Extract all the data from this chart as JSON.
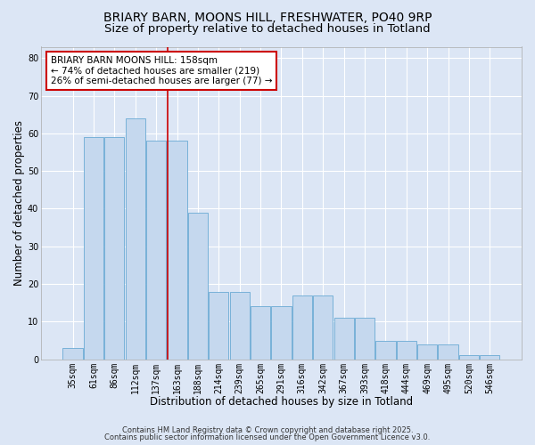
{
  "title1": "BRIARY BARN, MOONS HILL, FRESHWATER, PO40 9RP",
  "title2": "Size of property relative to detached houses in Totland",
  "xlabel": "Distribution of detached houses by size in Totland",
  "ylabel": "Number of detached properties",
  "categories": [
    "35sqm",
    "61sqm",
    "86sqm",
    "112sqm",
    "137sqm",
    "163sqm",
    "188sqm",
    "214sqm",
    "239sqm",
    "265sqm",
    "291sqm",
    "316sqm",
    "342sqm",
    "367sqm",
    "393sqm",
    "418sqm",
    "444sqm",
    "469sqm",
    "495sqm",
    "520sqm",
    "546sqm"
  ],
  "bar_values": [
    3,
    59,
    59,
    64,
    58,
    58,
    39,
    18,
    18,
    14,
    14,
    17,
    17,
    11,
    11,
    5,
    5,
    4,
    4,
    1,
    1
  ],
  "bar_color": "#c5d8ee",
  "bar_edge_color": "#6aaad4",
  "vline_pos": 4.53,
  "vline_color": "#cc0000",
  "annotation_text": "BRIARY BARN MOONS HILL: 158sqm\n← 74% of detached houses are smaller (219)\n26% of semi-detached houses are larger (77) →",
  "annotation_box_facecolor": "#ffffff",
  "annotation_box_edgecolor": "#cc0000",
  "ylim": [
    0,
    83
  ],
  "yticks": [
    0,
    10,
    20,
    30,
    40,
    50,
    60,
    70,
    80
  ],
  "background_color": "#dce6f5",
  "grid_color": "#ffffff",
  "footer_text1": "Contains HM Land Registry data © Crown copyright and database right 2025.",
  "footer_text2": "Contains public sector information licensed under the Open Government Licence v3.0.",
  "title1_fontsize": 10,
  "title2_fontsize": 9.5,
  "axis_label_fontsize": 8.5,
  "tick_fontsize": 7,
  "annotation_fontsize": 7.5,
  "footer_fontsize": 6
}
